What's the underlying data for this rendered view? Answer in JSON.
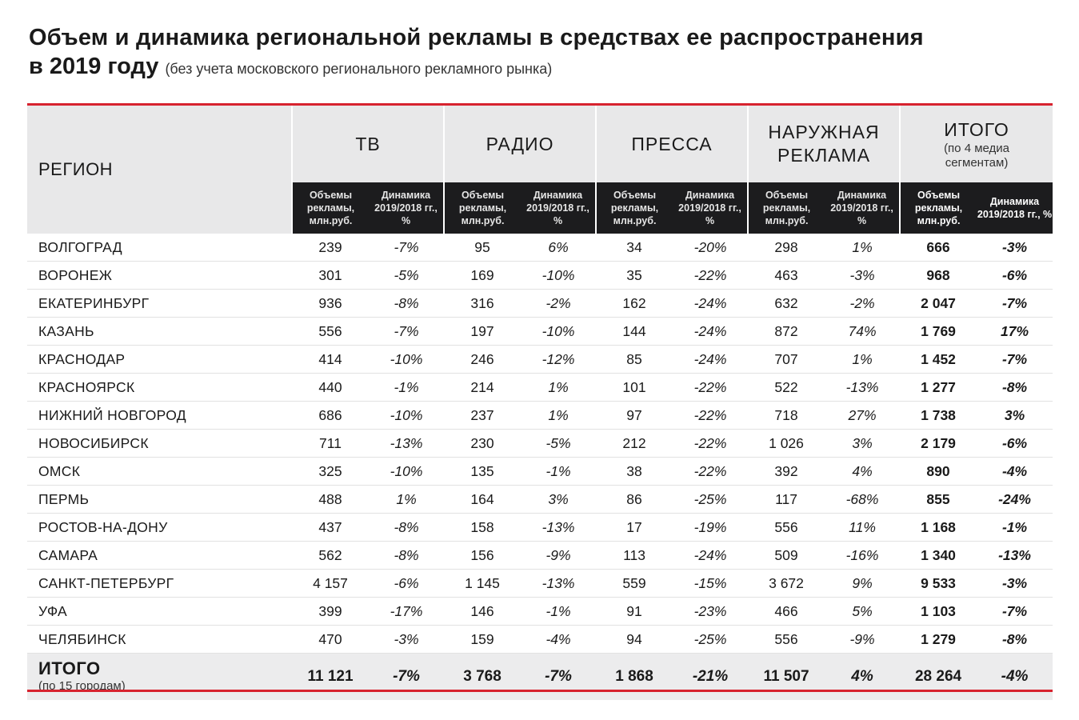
{
  "title": {
    "line1": "Объем и динамика региональной рекламы в средствах ее распространения",
    "line2": "в 2019 году",
    "note": "(без учета московского регионального рекламного рынка)"
  },
  "header": {
    "region": "РЕГИОН",
    "groups": [
      {
        "name": "ТВ"
      },
      {
        "name": "РАДИО"
      },
      {
        "name": "ПРЕССА"
      },
      {
        "name": "НАРУЖНАЯ РЕКЛАМА"
      }
    ],
    "total": {
      "name": "ИТОГО",
      "note": "(по 4 медиа сегментам)"
    },
    "sub_volume": "Объемы рекламы, млн.руб.",
    "sub_dynamics": "Динамика 2019/2018 гг., %"
  },
  "rows": [
    {
      "region": "ВОЛГОГРАД",
      "tv": "239",
      "tv_d": "-7%",
      "radio": "95",
      "radio_d": "6%",
      "press": "34",
      "press_d": "-20%",
      "outdoor": "298",
      "outdoor_d": "1%",
      "total": "666",
      "total_d": "-3%"
    },
    {
      "region": "ВОРОНЕЖ",
      "tv": "301",
      "tv_d": "-5%",
      "radio": "169",
      "radio_d": "-10%",
      "press": "35",
      "press_d": "-22%",
      "outdoor": "463",
      "outdoor_d": "-3%",
      "total": "968",
      "total_d": "-6%"
    },
    {
      "region": "ЕКАТЕРИНБУРГ",
      "tv": "936",
      "tv_d": "-8%",
      "radio": "316",
      "radio_d": "-2%",
      "press": "162",
      "press_d": "-24%",
      "outdoor": "632",
      "outdoor_d": "-2%",
      "total": "2 047",
      "total_d": "-7%"
    },
    {
      "region": "КАЗАНЬ",
      "tv": "556",
      "tv_d": "-7%",
      "radio": "197",
      "radio_d": "-10%",
      "press": "144",
      "press_d": "-24%",
      "outdoor": "872",
      "outdoor_d": "74%",
      "total": "1 769",
      "total_d": "17%"
    },
    {
      "region": "КРАСНОДАР",
      "tv": "414",
      "tv_d": "-10%",
      "radio": "246",
      "radio_d": "-12%",
      "press": "85",
      "press_d": "-24%",
      "outdoor": "707",
      "outdoor_d": "1%",
      "total": "1 452",
      "total_d": "-7%"
    },
    {
      "region": "КРАСНОЯРСК",
      "tv": "440",
      "tv_d": "-1%",
      "radio": "214",
      "radio_d": "1%",
      "press": "101",
      "press_d": "-22%",
      "outdoor": "522",
      "outdoor_d": "-13%",
      "total": "1 277",
      "total_d": "-8%"
    },
    {
      "region": "НИЖНИЙ НОВГОРОД",
      "tv": "686",
      "tv_d": "-10%",
      "radio": "237",
      "radio_d": "1%",
      "press": "97",
      "press_d": "-22%",
      "outdoor": "718",
      "outdoor_d": "27%",
      "total": "1 738",
      "total_d": "3%"
    },
    {
      "region": "НОВОСИБИРСК",
      "tv": "711",
      "tv_d": "-13%",
      "radio": "230",
      "radio_d": "-5%",
      "press": "212",
      "press_d": "-22%",
      "outdoor": "1 026",
      "outdoor_d": "3%",
      "total": "2 179",
      "total_d": "-6%"
    },
    {
      "region": "ОМСК",
      "tv": "325",
      "tv_d": "-10%",
      "radio": "135",
      "radio_d": "-1%",
      "press": "38",
      "press_d": "-22%",
      "outdoor": "392",
      "outdoor_d": "4%",
      "total": "890",
      "total_d": "-4%"
    },
    {
      "region": "ПЕРМЬ",
      "tv": "488",
      "tv_d": "1%",
      "radio": "164",
      "radio_d": "3%",
      "press": "86",
      "press_d": "-25%",
      "outdoor": "117",
      "outdoor_d": "-68%",
      "total": "855",
      "total_d": "-24%"
    },
    {
      "region": "РОСТОВ-НА-ДОНУ",
      "tv": "437",
      "tv_d": "-8%",
      "radio": "158",
      "radio_d": "-13%",
      "press": "17",
      "press_d": "-19%",
      "outdoor": "556",
      "outdoor_d": "11%",
      "total": "1 168",
      "total_d": "-1%"
    },
    {
      "region": "САМАРА",
      "tv": "562",
      "tv_d": "-8%",
      "radio": "156",
      "radio_d": "-9%",
      "press": "113",
      "press_d": "-24%",
      "outdoor": "509",
      "outdoor_d": "-16%",
      "total": "1 340",
      "total_d": "-13%"
    },
    {
      "region": "САНКТ-ПЕТЕРБУРГ",
      "tv": "4 157",
      "tv_d": "-6%",
      "radio": "1 145",
      "radio_d": "-13%",
      "press": "559",
      "press_d": "-15%",
      "outdoor": "3 672",
      "outdoor_d": "9%",
      "total": "9 533",
      "total_d": "-3%"
    },
    {
      "region": "УФА",
      "tv": "399",
      "tv_d": "-17%",
      "radio": "146",
      "radio_d": "-1%",
      "press": "91",
      "press_d": "-23%",
      "outdoor": "466",
      "outdoor_d": "5%",
      "total": "1 103",
      "total_d": "-7%"
    },
    {
      "region": "ЧЕЛЯБИНСК",
      "tv": "470",
      "tv_d": "-3%",
      "radio": "159",
      "radio_d": "-4%",
      "press": "94",
      "press_d": "-25%",
      "outdoor": "556",
      "outdoor_d": "-9%",
      "total": "1 279",
      "total_d": "-8%"
    }
  ],
  "totals": {
    "label": "ИТОГО",
    "note": "(по 15 городам)",
    "tv": "11 121",
    "tv_d": "-7%",
    "radio": "3 768",
    "radio_d": "-7%",
    "press": "1 868",
    "press_d": "-21%",
    "outdoor": "11 507",
    "outdoor_d": "4%",
    "total": "28 264",
    "total_d": "-4%"
  },
  "colors": {
    "accent_red": "#d7232f",
    "header_gray": "#e8e8e9",
    "subheader_dark": "#1c1c1e"
  }
}
